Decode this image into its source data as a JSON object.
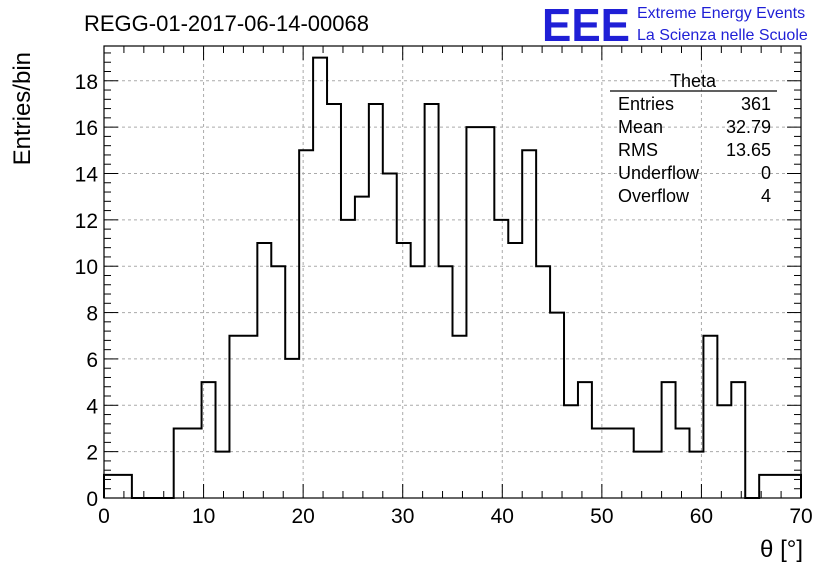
{
  "logo": {
    "mark": "EEE",
    "line1": "Extreme Energy Events",
    "line2": "La Scienza nelle Scuole",
    "color": "#1f1fd6"
  },
  "stats_box": {
    "title": "Theta",
    "rows": [
      {
        "label": "Entries",
        "value": "361"
      },
      {
        "label": "Mean",
        "value": "32.79"
      },
      {
        "label": "RMS",
        "value": "13.65"
      },
      {
        "label": "Underflow",
        "value": "0"
      },
      {
        "label": "Overflow",
        "value": "4"
      }
    ]
  },
  "chart_data": {
    "type": "bar",
    "title": "REGG-01-2017-06-14-00068",
    "xlabel": "θ [°]",
    "ylabel": "Entries/bin",
    "xlim": [
      0,
      70
    ],
    "ylim": [
      0,
      19.5
    ],
    "x_ticks": [
      0,
      10,
      20,
      30,
      40,
      50,
      60,
      70
    ],
    "y_ticks": [
      0,
      2,
      4,
      6,
      8,
      10,
      12,
      14,
      16,
      18
    ],
    "grid": true,
    "bin_width": 1.4,
    "bin_edges_start": 0,
    "values": [
      1,
      1,
      0,
      0,
      0,
      3,
      3,
      5,
      2,
      7,
      7,
      11,
      10,
      6,
      15,
      19,
      17,
      12,
      13,
      17,
      14,
      11,
      10,
      17,
      10,
      7,
      16,
      16,
      12,
      11,
      15,
      10,
      8,
      4,
      5,
      3,
      3,
      3,
      2,
      2,
      5,
      3,
      2,
      7,
      4,
      5,
      0,
      1,
      1,
      1
    ]
  }
}
